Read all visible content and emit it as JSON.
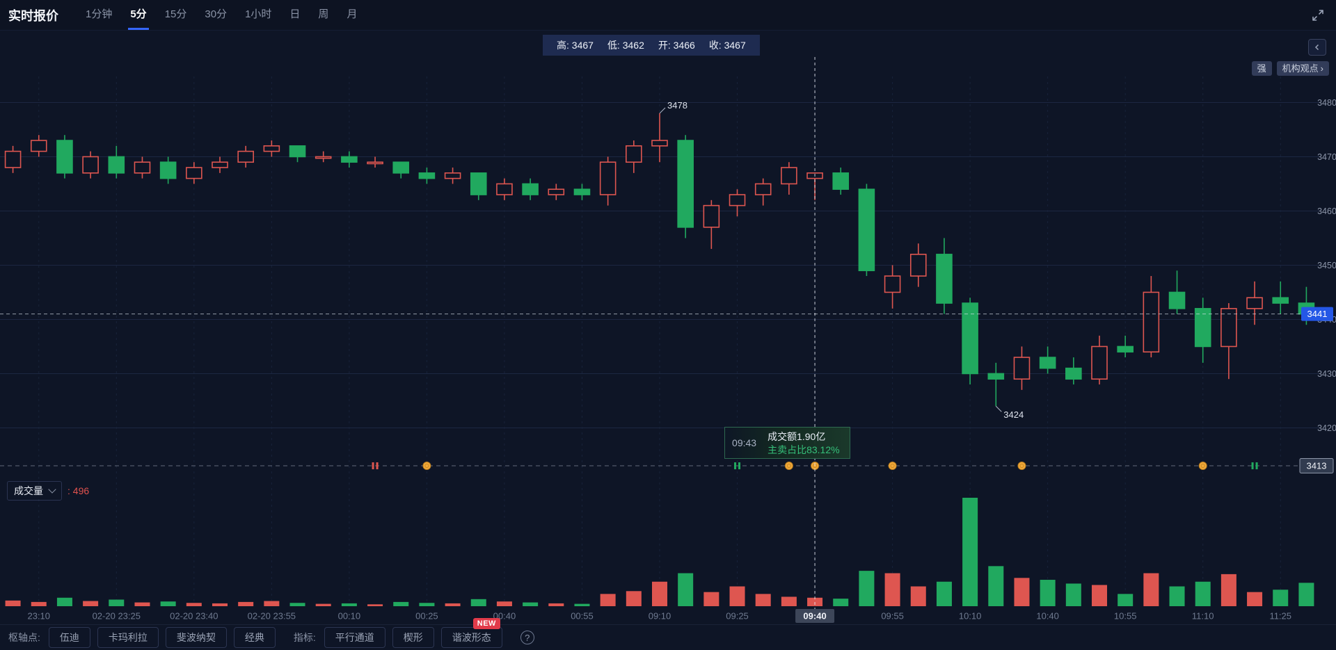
{
  "app": {
    "title": "实时报价",
    "timeframes": [
      {
        "label": "1分钟",
        "active": false
      },
      {
        "label": "5分",
        "active": true
      },
      {
        "label": "15分",
        "active": false
      },
      {
        "label": "30分",
        "active": false
      },
      {
        "label": "1小时",
        "active": false
      },
      {
        "label": "日",
        "active": false
      },
      {
        "label": "周",
        "active": false
      },
      {
        "label": "月",
        "active": false
      }
    ]
  },
  "ohlc_bar": {
    "items": [
      "高: 3467",
      "低: 3462",
      "开: 3466",
      "收: 3467"
    ]
  },
  "chart_header": {
    "strength_badge": "强",
    "viewpoint_label": "机构观点",
    "viewpoint_arrow": "›"
  },
  "volume_pane": {
    "title": "成交量",
    "value_label": ": 496"
  },
  "bottom_toolbar": {
    "pivot_label": "枢轴点:",
    "pivot_buttons": [
      "伍迪",
      "卡玛利拉",
      "斐波纳契",
      "经典"
    ],
    "indicator_label": "指标:",
    "indicator_buttons": [
      "平行通道",
      "楔形",
      "谐波形态"
    ],
    "new_badge": "NEW",
    "help_glyph": "?"
  },
  "chart_data": {
    "type": "candlestick",
    "ylim": [
      3413,
      3484.8
    ],
    "price_ticks": [
      3480,
      3470,
      3460,
      3450,
      3440,
      3430,
      3420
    ],
    "last_price": 3441,
    "baseline_price": 3413,
    "colors": {
      "up": "#de5650",
      "down": "#21a95f",
      "last_tag": "#2457e6"
    },
    "crosshair": {
      "index": 31,
      "axis_label": "09:40",
      "time": "09:43",
      "turnover": "成交额1.90亿",
      "sell_ratio": "主卖占比83.12%"
    },
    "x_labels": [
      {
        "index": 1,
        "label": "23:10"
      },
      {
        "index": 4,
        "label": "02-20 23:25"
      },
      {
        "index": 7,
        "label": "02-20 23:40"
      },
      {
        "index": 10,
        "label": "02-20 23:55"
      },
      {
        "index": 13,
        "label": "00:10"
      },
      {
        "index": 16,
        "label": "00:25"
      },
      {
        "index": 19,
        "label": "00:40"
      },
      {
        "index": 22,
        "label": "00:55"
      },
      {
        "index": 25,
        "label": "09:10"
      },
      {
        "index": 28,
        "label": "09:25"
      },
      {
        "index": 31,
        "label": "09:40",
        "highlight": true
      },
      {
        "index": 34,
        "label": "09:55"
      },
      {
        "index": 37,
        "label": "10:10"
      },
      {
        "index": 40,
        "label": "10:40"
      },
      {
        "index": 43,
        "label": "10:55"
      },
      {
        "index": 46,
        "label": "11:10"
      },
      {
        "index": 49,
        "label": "11:25"
      }
    ],
    "annotations": [
      {
        "index": 25,
        "price": 3478,
        "text": "3478",
        "side": "above"
      },
      {
        "index": 38,
        "price": 3424,
        "text": "3424",
        "side": "below"
      }
    ],
    "markers": [
      {
        "index": 14,
        "type": "red-bars"
      },
      {
        "index": 16,
        "type": "coin"
      },
      {
        "index": 28,
        "type": "green-bars"
      },
      {
        "index": 30,
        "type": "coin"
      },
      {
        "index": 31,
        "type": "coin"
      },
      {
        "index": 34,
        "type": "coin"
      },
      {
        "index": 39,
        "type": "coin"
      },
      {
        "index": 46,
        "type": "coin"
      },
      {
        "index": 48,
        "type": "green-bars"
      }
    ],
    "candles": [
      [
        3468,
        3472,
        3467,
        3471,
        120
      ],
      [
        3471,
        3474,
        3470,
        3473,
        90
      ],
      [
        3473,
        3474,
        3466,
        3467,
        180
      ],
      [
        3467,
        3471,
        3466,
        3470,
        110
      ],
      [
        3470,
        3472,
        3466,
        3467,
        140
      ],
      [
        3467,
        3470,
        3466,
        3469,
        80
      ],
      [
        3469,
        3470,
        3465,
        3466,
        100
      ],
      [
        3466,
        3469,
        3465,
        3468,
        70
      ],
      [
        3468,
        3470,
        3467,
        3469,
        60
      ],
      [
        3469,
        3472,
        3468,
        3471,
        90
      ],
      [
        3471,
        3473,
        3470,
        3472,
        110
      ],
      [
        3472,
        3472,
        3469,
        3470,
        70
      ],
      [
        3470,
        3471,
        3469,
        3470,
        50
      ],
      [
        3470,
        3471,
        3468,
        3469,
        60
      ],
      [
        3469,
        3470,
        3468,
        3469,
        40
      ],
      [
        3469,
        3469,
        3466,
        3467,
        90
      ],
      [
        3467,
        3468,
        3465,
        3466,
        70
      ],
      [
        3466,
        3468,
        3465,
        3467,
        60
      ],
      [
        3467,
        3467,
        3462,
        3463,
        150
      ],
      [
        3463,
        3466,
        3462,
        3465,
        100
      ],
      [
        3465,
        3466,
        3462,
        3463,
        80
      ],
      [
        3463,
        3465,
        3462,
        3464,
        60
      ],
      [
        3464,
        3465,
        3462,
        3463,
        50
      ],
      [
        3463,
        3470,
        3461,
        3469,
        260
      ],
      [
        3469,
        3473,
        3467,
        3472,
        320
      ],
      [
        3472,
        3478,
        3469,
        3473,
        520
      ],
      [
        3473,
        3474,
        3455,
        3457,
        700
      ],
      [
        3457,
        3462,
        3453,
        3461,
        300
      ],
      [
        3461,
        3464,
        3459,
        3463,
        420
      ],
      [
        3463,
        3466,
        3461,
        3465,
        260
      ],
      [
        3465,
        3469,
        3463,
        3468,
        200
      ],
      [
        3466,
        3467,
        3462,
        3467,
        180
      ],
      [
        3467,
        3468,
        3463,
        3464,
        160
      ],
      [
        3464,
        3465,
        3448,
        3449,
        750
      ],
      [
        3445,
        3450,
        3442,
        3448,
        700
      ],
      [
        3448,
        3454,
        3446,
        3452,
        420
      ],
      [
        3452,
        3455,
        3441,
        3443,
        520
      ],
      [
        3443,
        3444,
        3428,
        3430,
        2300
      ],
      [
        3430,
        3432,
        3424,
        3429,
        850
      ],
      [
        3429,
        3435,
        3427,
        3433,
        600
      ],
      [
        3433,
        3435,
        3430,
        3431,
        560
      ],
      [
        3431,
        3433,
        3428,
        3429,
        480
      ],
      [
        3429,
        3437,
        3428,
        3435,
        450
      ],
      [
        3435,
        3437,
        3433,
        3434,
        260
      ],
      [
        3434,
        3448,
        3433,
        3445,
        700
      ],
      [
        3445,
        3449,
        3441,
        3442,
        420
      ],
      [
        3442,
        3444,
        3432,
        3435,
        520
      ],
      [
        3435,
        3443,
        3429,
        3442,
        680
      ],
      [
        3442,
        3447,
        3439,
        3444,
        300
      ],
      [
        3444,
        3447,
        3441,
        3443,
        350
      ],
      [
        3443,
        3446,
        3439,
        3441,
        496
      ]
    ]
  }
}
